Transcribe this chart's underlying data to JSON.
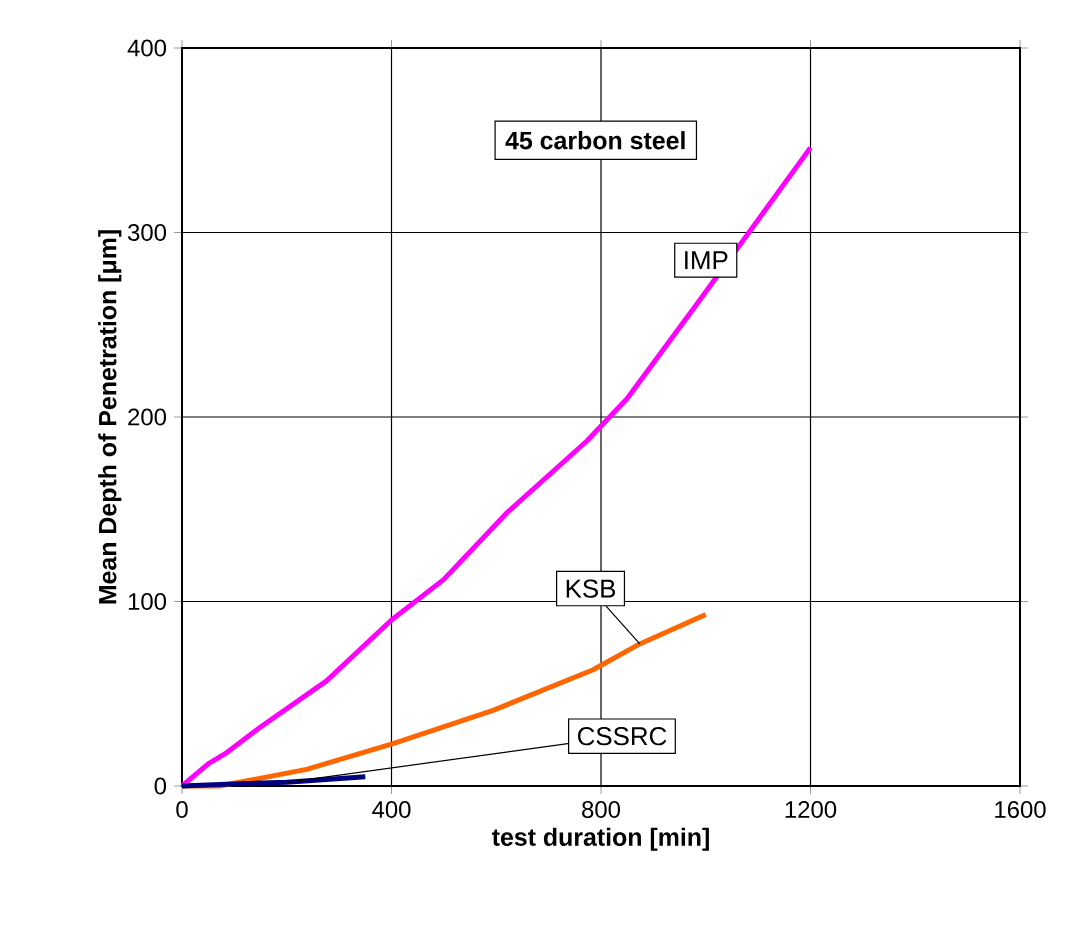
{
  "chart_data": {
    "type": "line",
    "title": "45 carbon steel",
    "xlabel": "test duration [min]",
    "ylabel": "Mean Depth of Penetration [μm]",
    "xlim": [
      0,
      1600
    ],
    "xticks": [
      0,
      400,
      800,
      1200,
      1600
    ],
    "ylim": [
      0,
      400
    ],
    "yticks": [
      0,
      100,
      200,
      300,
      400
    ],
    "grid": true,
    "marker": "none",
    "line_style": "solid",
    "series": [
      {
        "name": "IMP",
        "color": "#ff00ff",
        "x": [
          0,
          50,
          85,
          150,
          276,
          400,
          500,
          620,
          773,
          850,
          980,
          1200
        ],
        "values": [
          0,
          12,
          18,
          32,
          57,
          90,
          112,
          148,
          187,
          210,
          260,
          346
        ]
      },
      {
        "name": "KSB",
        "color": "#ff6600",
        "x": [
          0,
          72,
          238,
          403,
          594,
          785,
          874,
          1000
        ],
        "values": [
          0,
          0,
          9,
          23,
          41,
          63,
          77,
          93
        ]
      },
      {
        "name": "CSSRC",
        "color": "#000080",
        "x": [
          0,
          85,
          200,
          350
        ],
        "values": [
          0,
          1,
          2,
          5
        ]
      }
    ]
  }
}
